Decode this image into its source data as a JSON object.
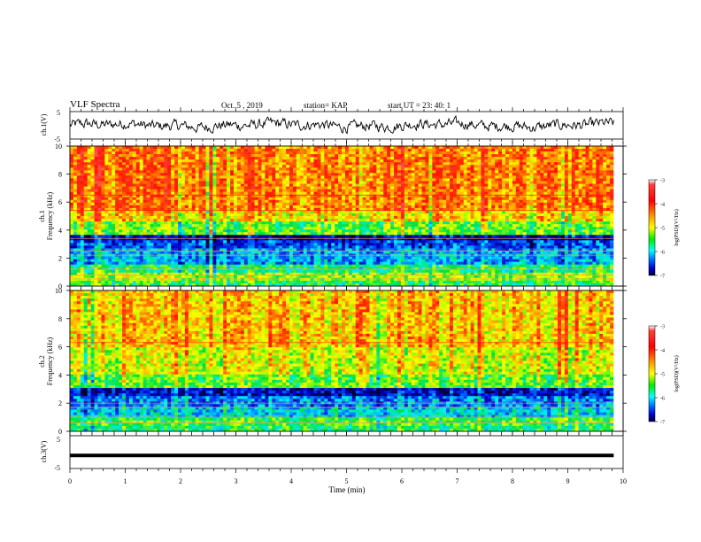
{
  "header": {
    "title": "VLF Spectra",
    "date": "Oct. 5 , 2019",
    "station": "station= KAP",
    "start": "start  UT  =   23: 40: 1"
  },
  "colorbar": {
    "label": "log(PSD)(V²/Hz)",
    "ticks": [
      -3,
      -4,
      -5,
      -6,
      -7
    ],
    "colors": [
      "#ffffff",
      "#ff3333",
      "#ff0000",
      "#ff8800",
      "#ffff00",
      "#00ee00",
      "#00ffff",
      "#0066ff",
      "#0000cc",
      "#000033"
    ]
  },
  "chart_data": [
    {
      "type": "line",
      "name": "ch1-waveform",
      "ylabel": "ch.1(V)",
      "ylim": [
        -5,
        5
      ],
      "yticks": [
        -5,
        5
      ],
      "xlim": [
        0,
        10
      ],
      "approx_amplitude": 1.2,
      "line_color": "#000000"
    },
    {
      "type": "heatmap",
      "name": "ch1-spectrogram",
      "ylabel": "ch.1\nFrequency (kHz)",
      "xlim": [
        0,
        9.83
      ],
      "ylim": [
        0,
        10
      ],
      "yticks": [
        0,
        2,
        4,
        6,
        8,
        10
      ],
      "value_range": [
        -7,
        -3
      ],
      "bands": [
        {
          "from": 0,
          "to": 0.3,
          "level": -5.2
        },
        {
          "from": 0.3,
          "to": 0.9,
          "level": -4.8
        },
        {
          "from": 0.9,
          "to": 1.6,
          "level": -5.3
        },
        {
          "from": 1.6,
          "to": 2.6,
          "level": -5.9
        },
        {
          "from": 2.6,
          "to": 3.2,
          "level": -6.2
        },
        {
          "from": 3.2,
          "to": 3.6,
          "level": -6.6
        },
        {
          "from": 3.6,
          "to": 4.6,
          "level": -5.0
        },
        {
          "from": 4.6,
          "to": 5.4,
          "level": -4.4
        },
        {
          "from": 5.4,
          "to": 10,
          "level": -4.0
        }
      ],
      "lines_khz": [
        0.5,
        0.8,
        1.2,
        2.2,
        2.5,
        3.4,
        5.4,
        6.5
      ]
    },
    {
      "type": "heatmap",
      "name": "ch2-spectrogram",
      "ylabel": "ch.2\nFrequency (kHz)",
      "xlim": [
        0,
        9.83
      ],
      "ylim": [
        0,
        10
      ],
      "yticks": [
        0,
        2,
        4,
        6,
        8,
        10
      ],
      "value_range": [
        -7,
        -3
      ],
      "bands": [
        {
          "from": 0,
          "to": 0.4,
          "level": -5.3
        },
        {
          "from": 0.4,
          "to": 1.0,
          "level": -5.1
        },
        {
          "from": 1.0,
          "to": 1.8,
          "level": -5.7
        },
        {
          "from": 1.8,
          "to": 2.5,
          "level": -6.0
        },
        {
          "from": 2.5,
          "to": 3.1,
          "level": -6.5
        },
        {
          "from": 3.1,
          "to": 4.0,
          "level": -5.0
        },
        {
          "from": 4.0,
          "to": 6.0,
          "level": -4.6
        },
        {
          "from": 6.0,
          "to": 10,
          "level": -4.3
        }
      ],
      "lines_khz": [
        0.6,
        1.0,
        1.7,
        2.0,
        6.3
      ]
    },
    {
      "type": "line",
      "name": "ch3-waveform",
      "ylabel": "ch.3(V)",
      "ylim": [
        -5,
        5
      ],
      "yticks": [
        -5,
        5
      ],
      "xlim": [
        0,
        9.83
      ],
      "values": [
        -1,
        -1
      ],
      "x": [
        0,
        9.83
      ],
      "line_color": "#000000"
    }
  ],
  "xaxis": {
    "label": "Time (min)",
    "range": [
      0,
      10
    ],
    "ticks": [
      0,
      1,
      2,
      3,
      4,
      5,
      6,
      7,
      8,
      9,
      10
    ]
  }
}
